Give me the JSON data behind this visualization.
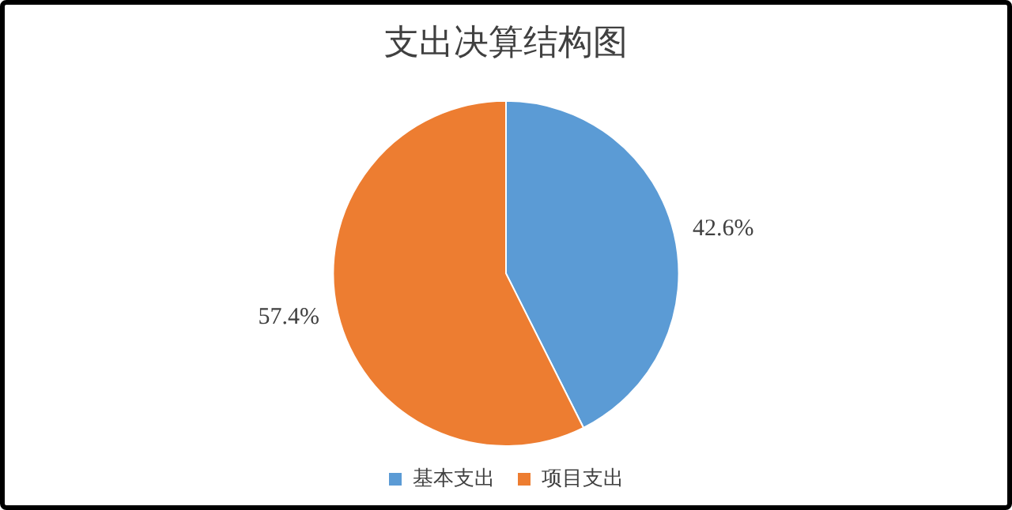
{
  "chart_data": {
    "type": "pie",
    "title": "支出决算结构图",
    "categories": [
      "基本支出",
      "项目支出"
    ],
    "values": [
      42.6,
      57.4
    ],
    "colors": [
      "#5b9bd5",
      "#ed7d31"
    ],
    "value_labels": [
      "42.6%",
      "57.4%"
    ],
    "legend": "bottom"
  }
}
